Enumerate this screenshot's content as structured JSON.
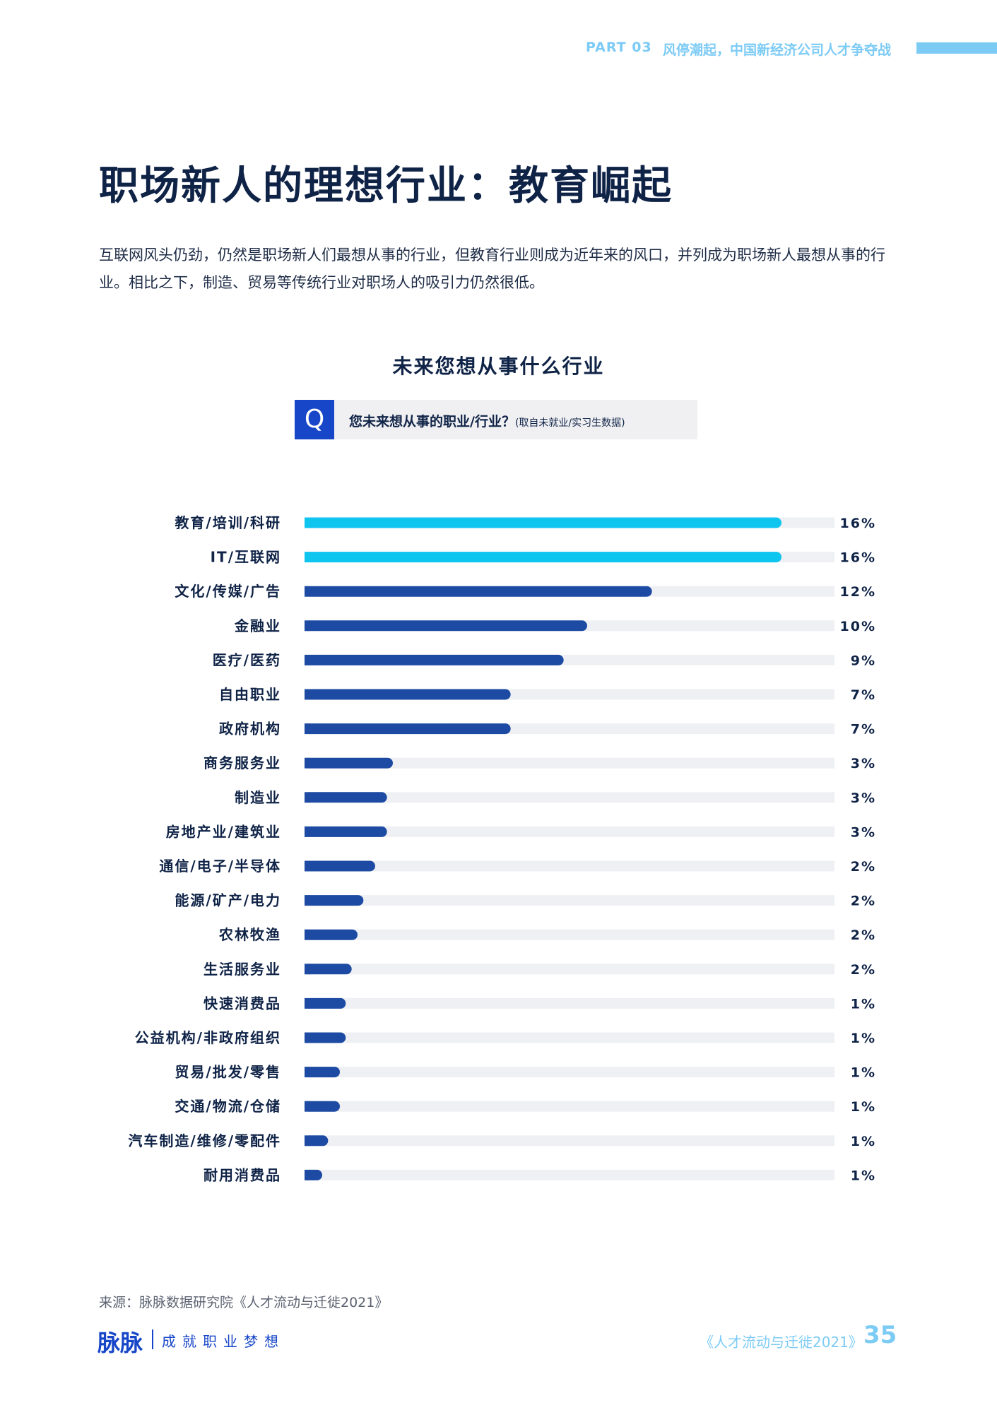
{
  "header": {
    "part": "PART 03",
    "subtitle": "风停潮起，中国新经济公司人才争夺战"
  },
  "page_title": "职场新人的理想行业：教育崛起",
  "intro": "互联网风头仍劲，仍然是职场新人们最想从事的行业，但教育行业则成为近年来的风口，并列成为职场新人最想从事的行业。相比之下，制造、贸易等传统行业对职场人的吸引力仍然很低。",
  "question": {
    "mark": "Q",
    "text": "您未来想从事的职业/行业？",
    "note": "(取自未就业/实习生数据)"
  },
  "chart_data": {
    "type": "bar",
    "orientation": "horizontal",
    "title": "未来您想从事什么行业",
    "xlim": [
      0,
      18
    ],
    "categories": [
      "教育/培训/科研",
      "IT/互联网",
      "文化/传媒/广告",
      "金融业",
      "医疗/医药",
      "自由职业",
      "政府机构",
      "商务服务业",
      "制造业",
      "房地产业/建筑业",
      "通信/电子/半导体",
      "能源/矿产/电力",
      "农林牧渔",
      "生活服务业",
      "快速消费品",
      "公益机构/非政府组织",
      "贸易/批发/零售",
      "交通/物流/仓储",
      "汽车制造/维修/零配件",
      "耐用消费品"
    ],
    "values": [
      16.2,
      16.2,
      11.8,
      9.6,
      8.8,
      7.0,
      7.0,
      3.0,
      2.8,
      2.8,
      2.4,
      2.0,
      1.8,
      1.6,
      1.4,
      1.4,
      1.2,
      1.2,
      0.8,
      0.6
    ],
    "labels": [
      "16%",
      "16%",
      "12%",
      "10%",
      "9%",
      "7%",
      "7%",
      "3%",
      "3%",
      "3%",
      "2%",
      "2%",
      "2%",
      "2%",
      "1%",
      "1%",
      "1%",
      "1%",
      "1%",
      "1%"
    ],
    "colors": {
      "highlight": "#0ec5f0",
      "bar": "#1d4aa3",
      "track": "#eff0f3",
      "text": "#0f2347"
    },
    "highlight_count": 2
  },
  "source": "来源：脉脉数据研究院《人才流动与迁徙2021》",
  "footer": {
    "logo": "脉脉",
    "slogan": "成就职业梦想",
    "report": "《人才流动与迁徙2021》",
    "page": "35"
  }
}
